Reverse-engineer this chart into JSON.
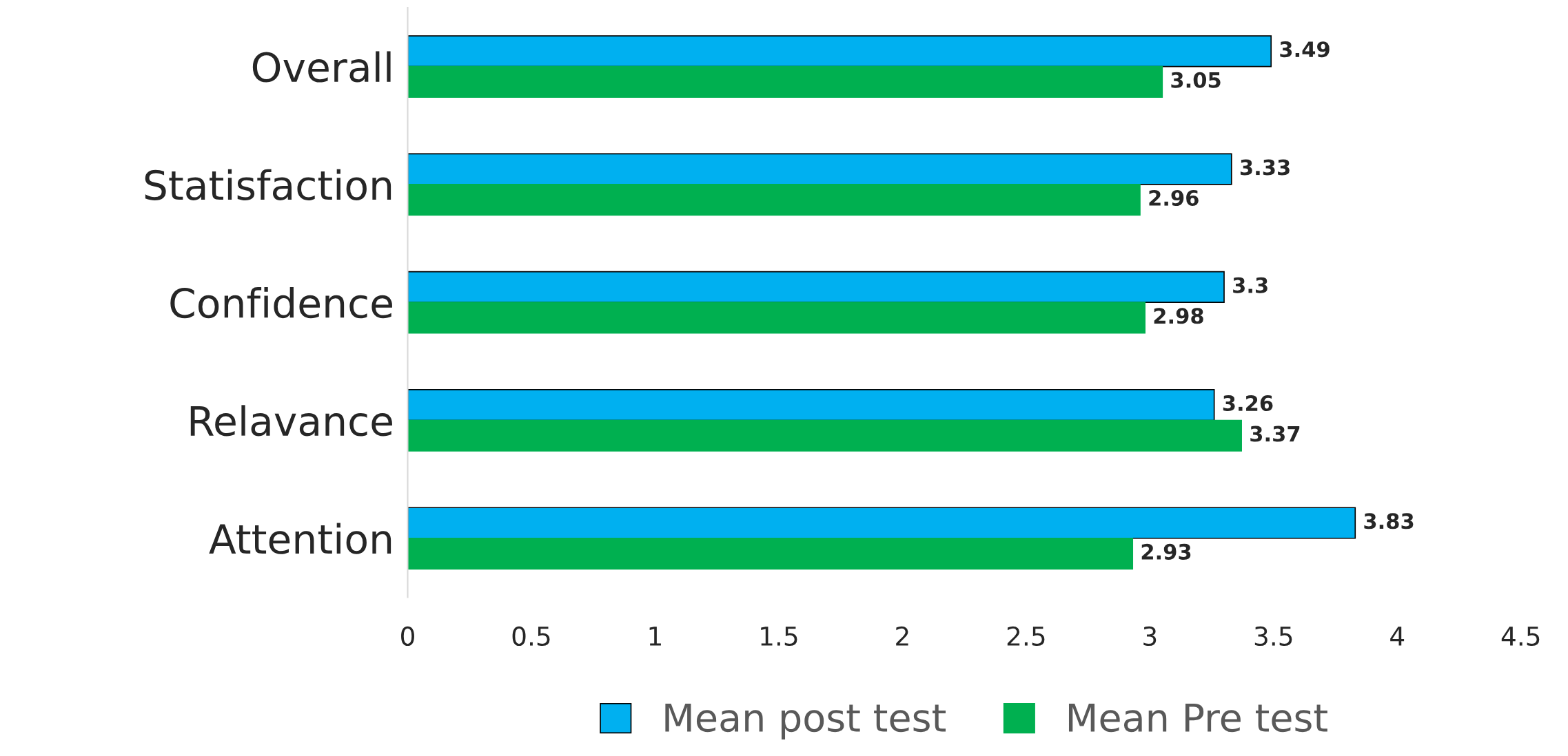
{
  "chart_data": {
    "type": "bar",
    "orientation": "horizontal",
    "categories": [
      "Overall",
      "Statisfaction",
      "Confidence",
      "Relavance",
      "Attention"
    ],
    "series": [
      {
        "name": "Mean post test",
        "color": "#00b0f0",
        "values": [
          3.49,
          3.33,
          3.3,
          3.26,
          3.83
        ]
      },
      {
        "name": "Mean Pre test",
        "color": "#00b050",
        "values": [
          3.05,
          2.96,
          2.98,
          3.37,
          2.93
        ]
      }
    ],
    "xlim": [
      0,
      4.5
    ],
    "xticks": [
      0,
      0.5,
      1,
      1.5,
      2,
      2.5,
      3,
      3.5,
      4,
      4.5
    ],
    "data_labels": true,
    "grid": false,
    "legend": "bottom"
  }
}
